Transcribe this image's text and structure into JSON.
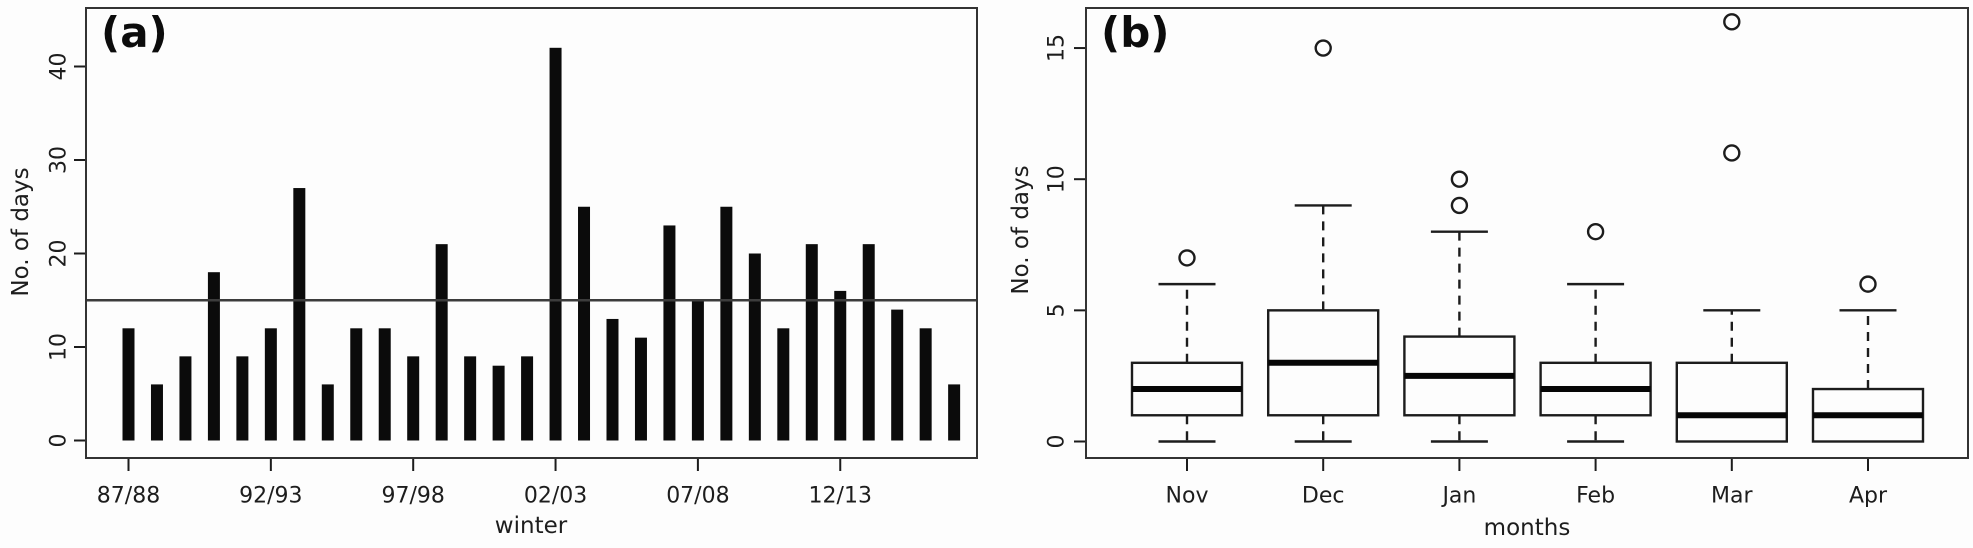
{
  "figure": {
    "background": "#fdfdfd",
    "ink_color": "#1c1c1c",
    "reference_line_color": "#3c3c3c"
  },
  "panel_a": {
    "label": "(a)",
    "ylabel": "No. of days",
    "xlabel": "winter"
  },
  "panel_b": {
    "label": "(b)",
    "ylabel": "No. of days",
    "xlabel": "months"
  },
  "chart_data": [
    {
      "panel": "a",
      "type": "bar",
      "title": "(a)",
      "xlabel": "winter",
      "ylabel": "No. of days",
      "n_bars": 30,
      "values": [
        12,
        6,
        9,
        18,
        9,
        12,
        27,
        6,
        12,
        12,
        9,
        21,
        9,
        8,
        9,
        42,
        25,
        13,
        11,
        23,
        15,
        25,
        20,
        12,
        21,
        16,
        21,
        14,
        12,
        6
      ],
      "x_ticks": [
        {
          "index": 0,
          "label": "87/88"
        },
        {
          "index": 5,
          "label": "92/93"
        },
        {
          "index": 10,
          "label": "97/98"
        },
        {
          "index": 15,
          "label": "02/03"
        },
        {
          "index": 20,
          "label": "07/08"
        },
        {
          "index": 25,
          "label": "12/13"
        }
      ],
      "y_ticks": [
        0,
        10,
        20,
        30,
        40
      ],
      "ylim": [
        -1.9,
        46.3
      ],
      "reference_line": 15,
      "bar_color": "#0b0b0b",
      "grid": false,
      "legend": "none"
    },
    {
      "panel": "b",
      "type": "boxplot",
      "xlabel": "months",
      "ylabel": "No. of days",
      "categories": [
        "Nov",
        "Dec",
        "Jan",
        "Feb",
        "Mar",
        "Apr"
      ],
      "boxes": [
        {
          "category": "Nov",
          "whisker_low": 0,
          "q1": 1,
          "median": 2,
          "q3": 3,
          "whisker_high": 6,
          "outliers": [
            7
          ]
        },
        {
          "category": "Dec",
          "whisker_low": 0,
          "q1": 1,
          "median": 3,
          "q3": 5,
          "whisker_high": 9,
          "outliers": [
            15
          ]
        },
        {
          "category": "Jan",
          "whisker_low": 0,
          "q1": 1,
          "median": 2.5,
          "q3": 4,
          "whisker_high": 8,
          "outliers": [
            9,
            10
          ]
        },
        {
          "category": "Feb",
          "whisker_low": 0,
          "q1": 1,
          "median": 2,
          "q3": 3,
          "whisker_high": 6,
          "outliers": [
            8
          ]
        },
        {
          "category": "Mar",
          "whisker_low": 0,
          "q1": 0,
          "median": 1,
          "q3": 3,
          "whisker_high": 5,
          "outliers": [
            11,
            16
          ]
        },
        {
          "category": "Apr",
          "whisker_low": 0,
          "q1": 0,
          "median": 1,
          "q3": 2,
          "whisker_high": 5,
          "outliers": [
            6
          ]
        }
      ],
      "y_ticks": [
        0,
        5,
        10,
        15
      ],
      "ylim": [
        -0.65,
        16.5
      ],
      "grid": false,
      "legend": "none"
    }
  ]
}
